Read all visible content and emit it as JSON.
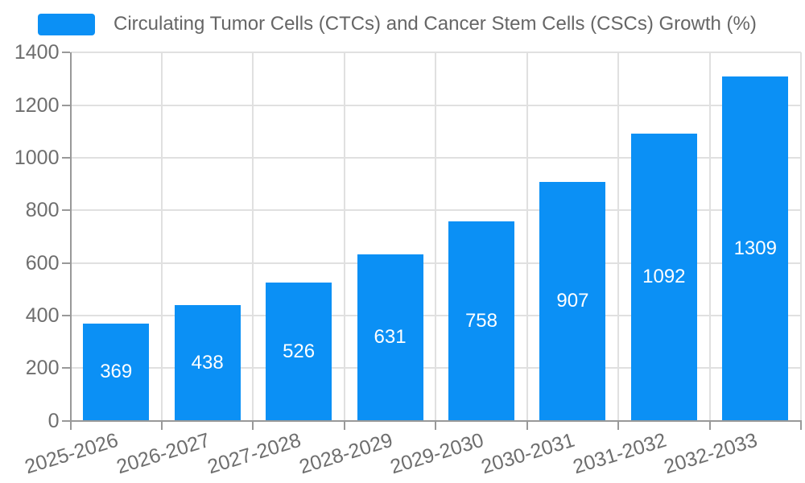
{
  "legend": {
    "label": "Circulating Tumor Cells (CTCs) and Cancer Stem Cells (CSCs) Growth (%)"
  },
  "colors": {
    "bar": "#0b90f5",
    "value_label": "#ffffff",
    "axis_label": "#6e6e6e",
    "legend_text": "#666666",
    "grid": "#e0e0e0",
    "axis_line": "#999999",
    "background": "#ffffff"
  },
  "chart_data": {
    "type": "bar",
    "title": "Circulating Tumor Cells (CTCs) and Cancer Stem Cells (CSCs) Growth (%)",
    "categories": [
      "2025-2026",
      "2026-2027",
      "2027-2028",
      "2028-2029",
      "2029-2030",
      "2030-2031",
      "2031-2032",
      "2032-2033"
    ],
    "series": [
      {
        "name": "Circulating Tumor Cells (CTCs) and Cancer Stem Cells (CSCs) Growth (%)",
        "values": [
          369,
          438,
          526,
          631,
          758,
          907,
          1092,
          1309
        ]
      }
    ],
    "value_labels_shown": true,
    "xlabel": "",
    "ylabel": "",
    "ylim": [
      0,
      1400
    ],
    "yticks": [
      0,
      200,
      400,
      600,
      800,
      1000,
      1200,
      1400
    ],
    "grid": true,
    "legend_position": "top-left",
    "x_label_rotation_deg": -17
  }
}
